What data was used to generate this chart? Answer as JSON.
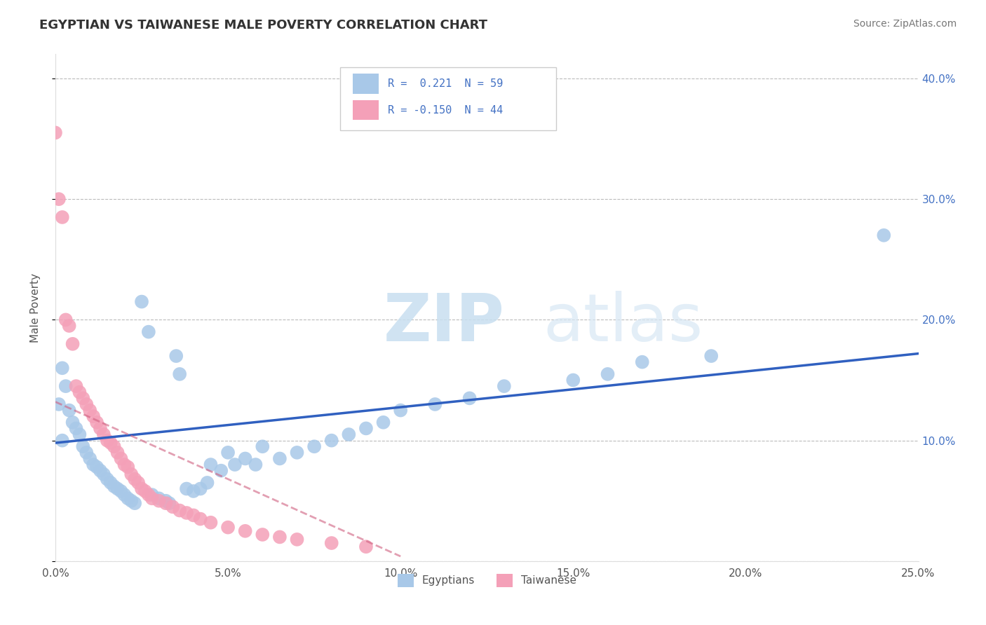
{
  "title": "EGYPTIAN VS TAIWANESE MALE POVERTY CORRELATION CHART",
  "source": "Source: ZipAtlas.com",
  "ylabel": "Male Poverty",
  "xlim": [
    0.0,
    0.25
  ],
  "ylim": [
    0.0,
    0.42
  ],
  "xticks": [
    0.0,
    0.05,
    0.1,
    0.15,
    0.2,
    0.25
  ],
  "xtick_labels": [
    "0.0%",
    "5.0%",
    "10.0%",
    "15.0%",
    "20.0%",
    "25.0%"
  ],
  "yticks": [
    0.0,
    0.1,
    0.2,
    0.3,
    0.4
  ],
  "ytick_labels": [
    "",
    "10.0%",
    "20.0%",
    "30.0%",
    "40.0%"
  ],
  "legend_label1": "Egyptians",
  "legend_label2": "Taiwanese",
  "color_blue": "#a8c8e8",
  "color_pink": "#f4a0b8",
  "trendline_color": "#3060c0",
  "trendline_pink": "#d06080",
  "watermark_zip": "ZIP",
  "watermark_atlas": "atlas",
  "egyptians_x": [
    0.001,
    0.002,
    0.002,
    0.003,
    0.004,
    0.005,
    0.006,
    0.007,
    0.008,
    0.009,
    0.01,
    0.011,
    0.012,
    0.013,
    0.014,
    0.015,
    0.016,
    0.017,
    0.018,
    0.019,
    0.02,
    0.021,
    0.022,
    0.023,
    0.025,
    0.027,
    0.028,
    0.03,
    0.032,
    0.033,
    0.035,
    0.036,
    0.038,
    0.04,
    0.042,
    0.044,
    0.045,
    0.048,
    0.05,
    0.052,
    0.055,
    0.058,
    0.06,
    0.065,
    0.07,
    0.075,
    0.08,
    0.085,
    0.09,
    0.095,
    0.1,
    0.11,
    0.12,
    0.13,
    0.15,
    0.16,
    0.17,
    0.19,
    0.24
  ],
  "egyptians_y": [
    0.13,
    0.1,
    0.16,
    0.145,
    0.125,
    0.115,
    0.11,
    0.105,
    0.095,
    0.09,
    0.085,
    0.08,
    0.078,
    0.075,
    0.072,
    0.068,
    0.065,
    0.062,
    0.06,
    0.058,
    0.055,
    0.052,
    0.05,
    0.048,
    0.215,
    0.19,
    0.055,
    0.052,
    0.05,
    0.048,
    0.17,
    0.155,
    0.06,
    0.058,
    0.06,
    0.065,
    0.08,
    0.075,
    0.09,
    0.08,
    0.085,
    0.08,
    0.095,
    0.085,
    0.09,
    0.095,
    0.1,
    0.105,
    0.11,
    0.115,
    0.125,
    0.13,
    0.135,
    0.145,
    0.15,
    0.155,
    0.165,
    0.17,
    0.27
  ],
  "taiwanese_x": [
    0.0,
    0.001,
    0.002,
    0.003,
    0.004,
    0.005,
    0.006,
    0.007,
    0.008,
    0.009,
    0.01,
    0.011,
    0.012,
    0.013,
    0.014,
    0.015,
    0.016,
    0.017,
    0.018,
    0.019,
    0.02,
    0.021,
    0.022,
    0.023,
    0.024,
    0.025,
    0.026,
    0.027,
    0.028,
    0.03,
    0.032,
    0.034,
    0.036,
    0.038,
    0.04,
    0.042,
    0.045,
    0.05,
    0.055,
    0.06,
    0.065,
    0.07,
    0.08,
    0.09
  ],
  "taiwanese_y": [
    0.355,
    0.3,
    0.285,
    0.2,
    0.195,
    0.18,
    0.145,
    0.14,
    0.135,
    0.13,
    0.125,
    0.12,
    0.115,
    0.11,
    0.105,
    0.1,
    0.098,
    0.095,
    0.09,
    0.085,
    0.08,
    0.078,
    0.072,
    0.068,
    0.065,
    0.06,
    0.058,
    0.055,
    0.052,
    0.05,
    0.048,
    0.045,
    0.042,
    0.04,
    0.038,
    0.035,
    0.032,
    0.028,
    0.025,
    0.022,
    0.02,
    0.018,
    0.015,
    0.012
  ],
  "blue_trend_x0": 0.0,
  "blue_trend_y0": 0.098,
  "blue_trend_x1": 0.25,
  "blue_trend_y1": 0.172,
  "pink_trend_x0": 0.0,
  "pink_trend_y0": 0.132,
  "pink_trend_x1": 0.1,
  "pink_trend_y1": 0.004
}
